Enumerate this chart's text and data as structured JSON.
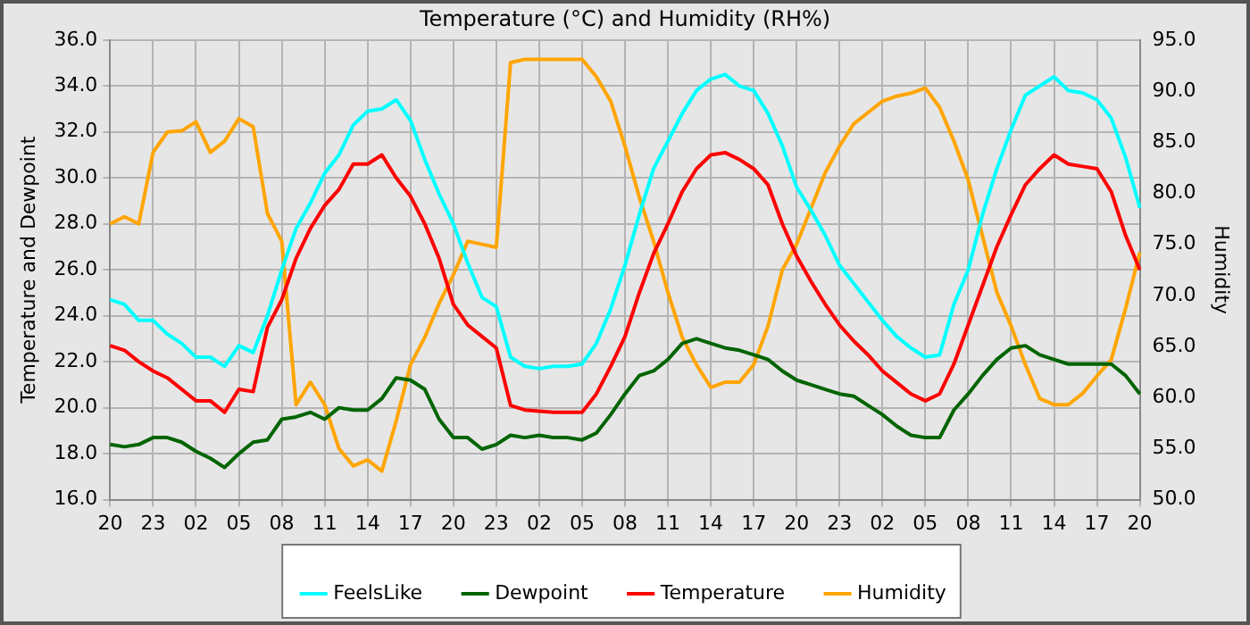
{
  "chart_data": {
    "type": "line",
    "title": "Temperature (°C) and Humidity (RH%)",
    "ylabel": "Temperature and Dewpoint",
    "y2label": "Humidity",
    "categories": [
      "20",
      null,
      null,
      "23",
      null,
      null,
      "02",
      null,
      null,
      "05",
      null,
      null,
      "08",
      null,
      null,
      "11",
      null,
      null,
      "14",
      null,
      null,
      "17",
      null,
      null,
      "20",
      null,
      null,
      "23",
      null,
      null,
      "02",
      null,
      null,
      "05",
      null,
      null,
      "08",
      null,
      null,
      "11",
      null,
      null,
      "14",
      null,
      null,
      "17",
      null,
      null,
      "20",
      null,
      null,
      "23",
      null,
      null,
      "02",
      null,
      null,
      "05",
      null,
      null,
      "08",
      null,
      null,
      "11",
      null,
      null,
      "14",
      null,
      null,
      "17",
      null,
      null,
      "20"
    ],
    "ylim": [
      16,
      36
    ],
    "yticks": [
      {
        "value": 16,
        "label": "16.0"
      },
      {
        "value": 18,
        "label": "18.0"
      },
      {
        "value": 20,
        "label": "20.0"
      },
      {
        "value": 22,
        "label": "22.0"
      },
      {
        "value": 24,
        "label": "24.0"
      },
      {
        "value": 26,
        "label": "26.0"
      },
      {
        "value": 28,
        "label": "28.0"
      },
      {
        "value": 30,
        "label": "30.0"
      },
      {
        "value": 32,
        "label": "32.0"
      },
      {
        "value": 34,
        "label": "34.0"
      },
      {
        "value": 36,
        "label": "36.0"
      }
    ],
    "y2lim": [
      50,
      95
    ],
    "y2ticks": [
      {
        "value": 50,
        "label": "50.0"
      },
      {
        "value": 55,
        "label": "55.0"
      },
      {
        "value": 60,
        "label": "60.0"
      },
      {
        "value": 65,
        "label": "65.0"
      },
      {
        "value": 70,
        "label": "70.0"
      },
      {
        "value": 75,
        "label": "75.0"
      },
      {
        "value": 80,
        "label": "80.0"
      },
      {
        "value": 85,
        "label": "85.0"
      },
      {
        "value": 90,
        "label": "90.0"
      },
      {
        "value": 95,
        "label": "95.0"
      }
    ],
    "grid": true,
    "legend": "bottom",
    "marker": "none",
    "line_style": "solid",
    "series": [
      {
        "name": "FeelsLike",
        "color": "#00ffff",
        "values": [
          24.7,
          24.5,
          23.8,
          23.8,
          23.2,
          22.8,
          22.2,
          22.2,
          21.8,
          22.7,
          22.4,
          24,
          26,
          27.8,
          28.9,
          30.2,
          31,
          32.3,
          32.9,
          33,
          33.4,
          32.5,
          30.8,
          29.3,
          28,
          26.3,
          24.8,
          24.4,
          22.2,
          21.8,
          21.7,
          21.8,
          21.8,
          21.9,
          22.8,
          24.3,
          26.2,
          28.4,
          30.4,
          31.6,
          32.8,
          33.8,
          34.3,
          34.5,
          34,
          33.8,
          32.8,
          31.4,
          29.6,
          28.6,
          27.5,
          26.2,
          25.4,
          24.6,
          23.8,
          23.1,
          22.6,
          22.2,
          22.3,
          24.5,
          26,
          28.4,
          30.4,
          32.1,
          33.6,
          34,
          34.4,
          33.8,
          33.7,
          33.4,
          32.6,
          30.9,
          28.7
        ]
      },
      {
        "name": "Dewpoint",
        "color": "#006400",
        "values": [
          18.4,
          18.3,
          18.4,
          18.7,
          18.7,
          18.5,
          18.1,
          17.8,
          17.4,
          18,
          18.5,
          18.6,
          19.5,
          19.6,
          19.8,
          19.5,
          20,
          19.9,
          19.9,
          20.4,
          21.3,
          21.2,
          20.8,
          19.5,
          18.7,
          18.7,
          18.2,
          18.4,
          18.8,
          18.7,
          18.8,
          18.7,
          18.7,
          18.6,
          18.9,
          19.7,
          20.6,
          21.4,
          21.6,
          22.1,
          22.8,
          23,
          22.8,
          22.6,
          22.5,
          22.3,
          22.1,
          21.6,
          21.2,
          21,
          20.8,
          20.6,
          20.5,
          20.1,
          19.7,
          19.2,
          18.8,
          18.7,
          18.7,
          19.9,
          20.6,
          21.4,
          22.1,
          22.6,
          22.7,
          22.3,
          22.1,
          21.9,
          21.9,
          21.9,
          21.9,
          21.4,
          20.6
        ]
      },
      {
        "name": "Temperature",
        "color": "#ff0000",
        "values": [
          22.7,
          22.5,
          22,
          21.6,
          21.3,
          20.8,
          20.3,
          20.3,
          19.8,
          20.8,
          20.7,
          23.5,
          24.7,
          26.5,
          27.8,
          28.8,
          29.5,
          30.6,
          30.6,
          31,
          30,
          29.2,
          28,
          26.5,
          24.5,
          23.6,
          23.1,
          22.6,
          20.1,
          19.9,
          19.85,
          19.8,
          19.8,
          19.8,
          20.6,
          21.8,
          23.1,
          25,
          26.7,
          28,
          29.4,
          30.4,
          31,
          31.1,
          30.8,
          30.4,
          29.7,
          28,
          26.6,
          25.5,
          24.5,
          23.6,
          22.9,
          22.3,
          21.6,
          21.1,
          20.6,
          20.3,
          20.6,
          21.9,
          23.6,
          25.3,
          27,
          28.4,
          29.7,
          30.4,
          31,
          30.6,
          30.5,
          30.4,
          29.4,
          27.5,
          26
        ]
      },
      {
        "name": "Humidity",
        "color": "#ffa500",
        "axis": "y2",
        "values": [
          77,
          77.7,
          77,
          84,
          86,
          86.1,
          87,
          84,
          85.1,
          87.3,
          86.5,
          78,
          75.3,
          59.3,
          61.5,
          59.3,
          55,
          53.3,
          53.9,
          52.8,
          57.7,
          63.2,
          65.9,
          69.2,
          72,
          75.3,
          75,
          74.7,
          92.8,
          93.1,
          93.1,
          93.1,
          93.1,
          93.1,
          91.4,
          89,
          84.6,
          79.6,
          75.3,
          70.3,
          65.9,
          63.2,
          61,
          61.5,
          61.5,
          63.2,
          67,
          72.5,
          75,
          78.5,
          82,
          84.6,
          86.8,
          87.9,
          89,
          89.5,
          89.8,
          90.3,
          88.4,
          85.1,
          81.3,
          75.8,
          70.3,
          67,
          63.2,
          59.9,
          59.3,
          59.3,
          60.4,
          62.1,
          63.7,
          68.7,
          74.2
        ]
      }
    ]
  }
}
